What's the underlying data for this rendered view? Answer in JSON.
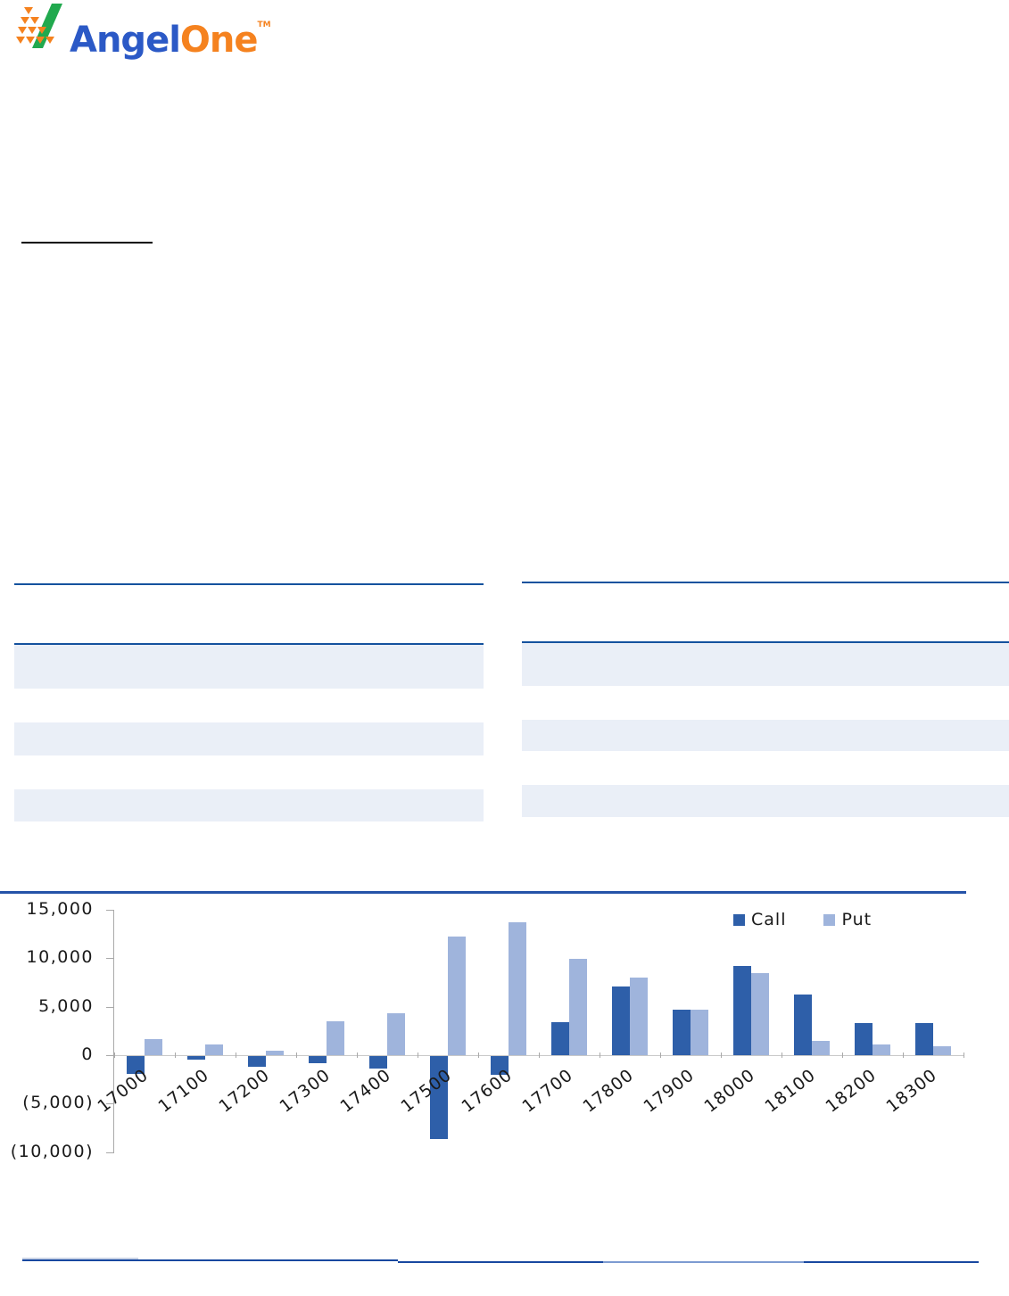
{
  "brand": {
    "part1": "Angel",
    "part2": "One",
    "tm": "TM"
  },
  "colors": {
    "call": "#2e5fa9",
    "put": "#9fb4dc",
    "table_rule": "#14529e",
    "table_band": "#eaeff7",
    "chart_rule": "#2553a8",
    "footer_dark": "#1848a0",
    "footer_light": "#7d9bd1",
    "footer_faint": "#c9d2e6",
    "brand_blue": "#2b59c6",
    "brand_orange": "#f5821f",
    "brand_green": "#21a94e"
  },
  "chart_data": {
    "type": "bar",
    "categories": [
      "17000",
      "17100",
      "17200",
      "17300",
      "17400",
      "17500",
      "17600",
      "17700",
      "17800",
      "17900",
      "18000",
      "18100",
      "18200",
      "18300"
    ],
    "series": [
      {
        "name": "Call",
        "color_key": "call",
        "values": [
          -1800,
          -400,
          -1100,
          -700,
          -1300,
          -8600,
          -1900,
          3400,
          7100,
          4700,
          9200,
          6300,
          3300,
          3300
        ]
      },
      {
        "name": "Put",
        "color_key": "put",
        "values": [
          1700,
          1100,
          500,
          3500,
          4300,
          12200,
          13700,
          9900,
          8000,
          4700,
          8500,
          1500,
          1100,
          900
        ]
      }
    ],
    "title": "",
    "xlabel": "",
    "ylabel": "",
    "ylim": [
      -10000,
      15000
    ],
    "ytick_values": [
      15000,
      10000,
      5000,
      0,
      -5000,
      -10000
    ],
    "ytick_labels": [
      "15,000",
      "10,000",
      "5,000",
      "0",
      "(5,000)",
      "(10,000)"
    ],
    "legend_position": "top-right",
    "grid": false
  }
}
